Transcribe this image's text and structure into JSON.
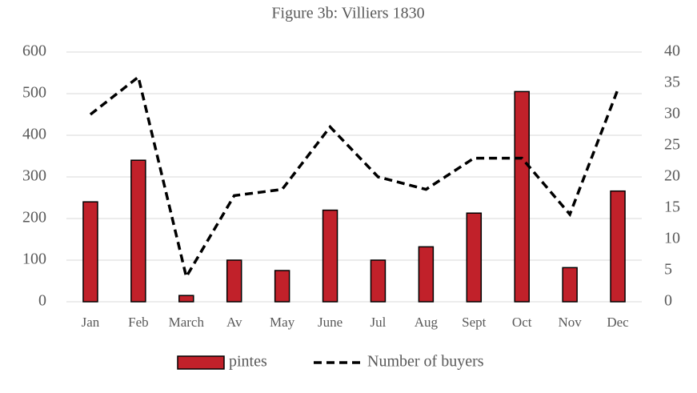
{
  "chart_data": {
    "type": "bar",
    "title": "Figure 3b: Villiers 1830",
    "categories": [
      "Jan",
      "Feb",
      "March",
      "Av",
      "May",
      "June",
      "Jul",
      "Aug",
      "Sept",
      "Oct",
      "Nov",
      "Dec"
    ],
    "series": [
      {
        "name": "pintes",
        "type": "bar",
        "color": "#c1212a",
        "values": [
          240,
          340,
          15,
          100,
          75,
          220,
          100,
          132,
          213,
          505,
          82,
          266
        ]
      },
      {
        "name": "Number of buyers",
        "type": "line",
        "axis": "y2",
        "color": "#000000",
        "values": [
          30,
          36,
          4,
          17,
          18,
          28,
          20,
          18,
          23,
          23,
          14,
          34
        ]
      }
    ],
    "ylim": [
      0,
      600
    ],
    "yticks": [
      0,
      100,
      200,
      300,
      400,
      500,
      600
    ],
    "y2lim": [
      0,
      40
    ],
    "y2ticks": [
      0,
      5,
      10,
      15,
      20,
      25,
      30,
      35,
      40
    ],
    "grid": true,
    "legend": "bottom"
  }
}
